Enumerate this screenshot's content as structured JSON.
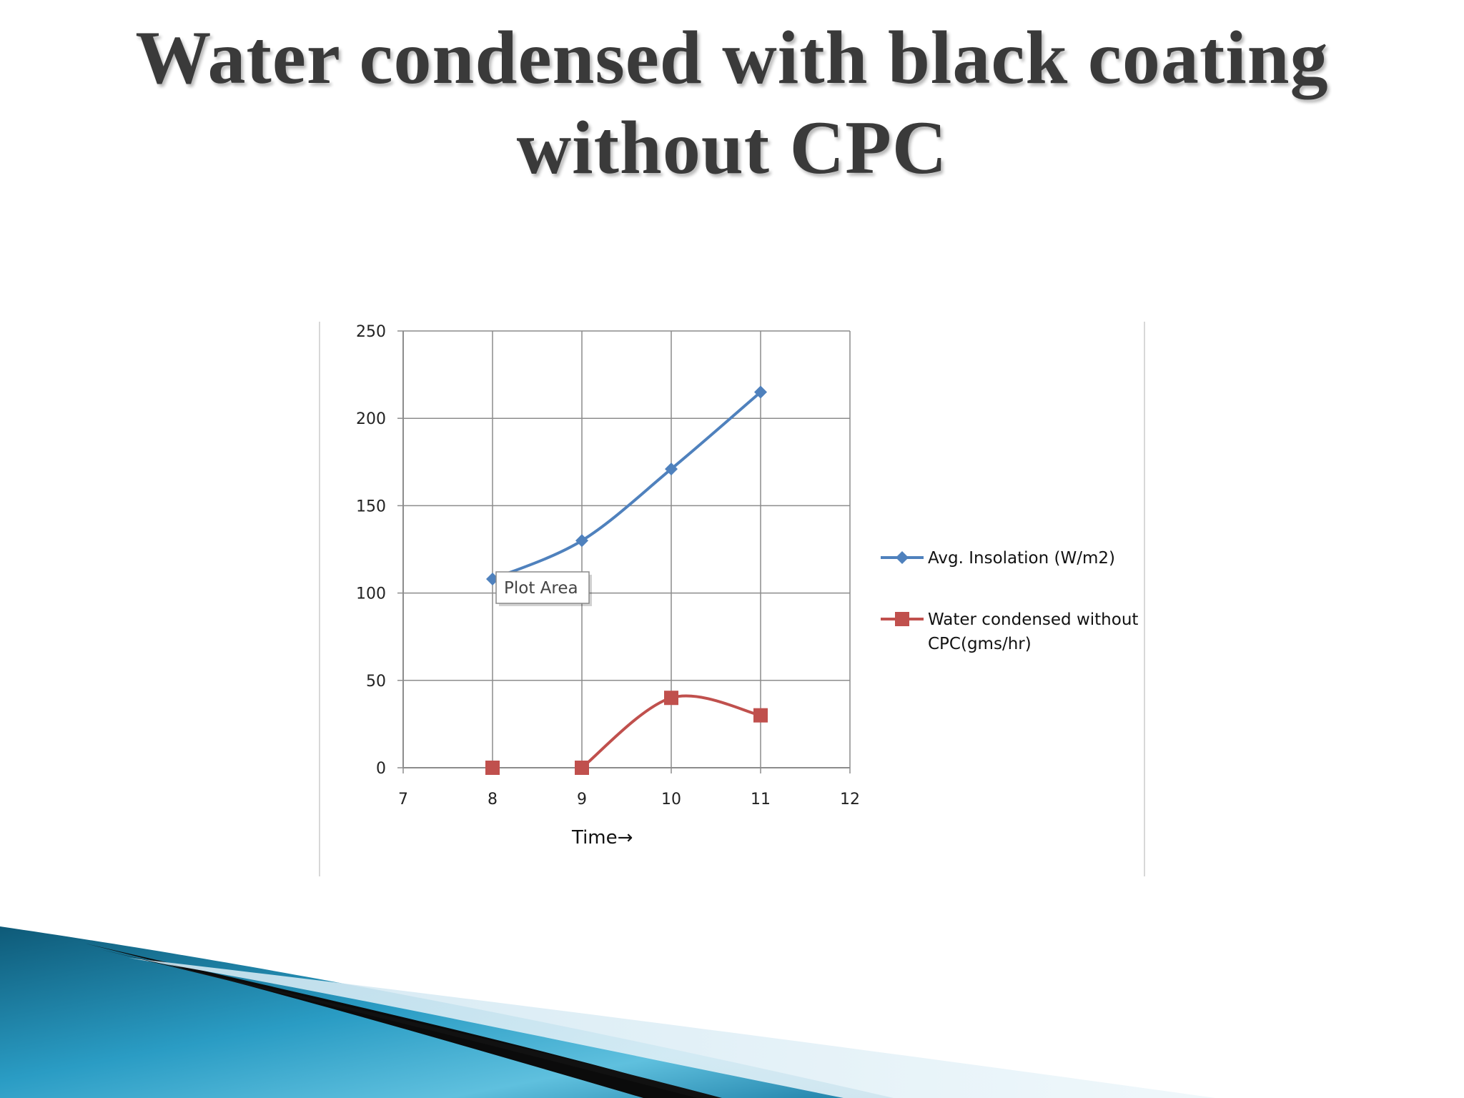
{
  "slide": {
    "title_line1": "Water condensed with black coating",
    "title_line2": "without CPC"
  },
  "chart_data": {
    "type": "scatter",
    "xlabel": "Time→",
    "ylabel": "",
    "xlim": [
      7,
      12
    ],
    "ylim": [
      0,
      250
    ],
    "xticks": [
      7,
      8,
      9,
      10,
      11,
      12
    ],
    "yticks": [
      0,
      50,
      100,
      150,
      200,
      250
    ],
    "grid": true,
    "legend_position": "right",
    "series": [
      {
        "name": "Avg. Insolation  (W/m2)",
        "color": "#4f81bd",
        "marker": "diamond",
        "x": [
          8,
          9,
          10,
          11
        ],
        "y": [
          108,
          130,
          171,
          215
        ]
      },
      {
        "name": "Water condensed without CPC(gms/hr)",
        "legend_line1": "Water condensed without",
        "legend_line2": "CPC(gms/hr)",
        "color": "#c0504d",
        "marker": "square",
        "x": [
          8,
          9,
          10,
          11
        ],
        "y": [
          0,
          0,
          40,
          30
        ]
      }
    ],
    "tooltip": "Plot Area"
  }
}
